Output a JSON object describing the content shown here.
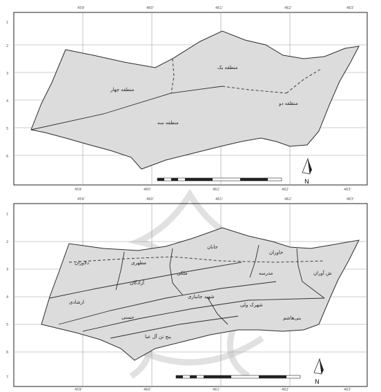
{
  "north_label": "N",
  "map1": {
    "regions": [
      {
        "name": "منطقه چهار"
      },
      {
        "name": "منطقه یک"
      },
      {
        "name": "منطقه دو"
      },
      {
        "name": "منطقه سه"
      }
    ],
    "x_ticks": [
      "459'",
      "460'",
      "461'",
      "462'",
      "463'"
    ],
    "y_ticks": [
      "1",
      "2",
      "3",
      "4",
      "5",
      "6"
    ]
  },
  "map2": {
    "regions": [
      {
        "name": "جابان"
      },
      {
        "name": "دلاوران"
      },
      {
        "name": "ملکی"
      },
      {
        "name": "مطهری"
      },
      {
        "name": "آزادگان"
      },
      {
        "name": "سلمان‌آباد"
      },
      {
        "name": "شهرک ولی"
      },
      {
        "name": "خاوران"
      },
      {
        "name": "ش‌ آوران"
      },
      {
        "name": "مدرسه"
      },
      {
        "name": "ارشادی"
      },
      {
        "name": "صاحب‌الزمان"
      },
      {
        "name": "شهید جانبازی"
      },
      {
        "name": "بنی‌هاشم"
      },
      {
        "name": "پنج تن آل عبا"
      },
      {
        "name": "حسنی"
      }
    ],
    "x_ticks": [
      "459'",
      "460'",
      "461'",
      "462'",
      "463'"
    ],
    "y_ticks": [
      "1",
      "2",
      "3",
      "4",
      "5",
      "6",
      "7"
    ]
  },
  "colors": {
    "region_fill": "#dcdcdc",
    "outline": "#2b2b2b",
    "grid": "#9a9a9a"
  }
}
